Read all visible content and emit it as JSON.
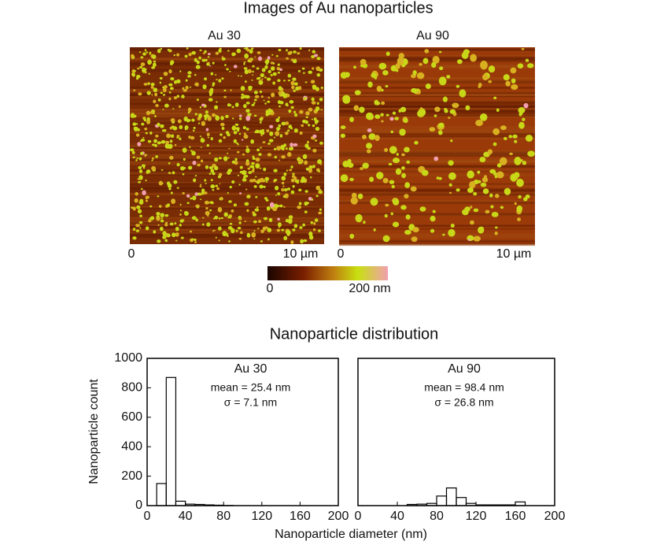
{
  "images": {
    "title": "Images of Au nanoparticles",
    "panels": [
      {
        "label": "Au 30",
        "x_start": "0",
        "x_end": "10 µm"
      },
      {
        "label": "Au 90",
        "x_start": "0",
        "x_end": "10 µm"
      }
    ],
    "colorbar": {
      "min_label": "0",
      "max_label": "200 nm"
    }
  },
  "distribution": {
    "title": "Nanoparticle distribution",
    "xlabel": "Nanoparticle diameter (nm)",
    "ylabel": "Nanoparticle count"
  },
  "chart_data": [
    {
      "type": "histogram",
      "title": "Au 30",
      "annotations": [
        "mean = 25.4 nm",
        "σ =    7.1 nm"
      ],
      "bins": [
        10,
        20,
        30,
        40,
        50,
        60,
        70,
        80,
        90
      ],
      "counts": [
        150,
        870,
        30,
        10,
        8,
        5,
        3,
        1
      ],
      "xlim": [
        0,
        200
      ],
      "xticks": [
        0,
        40,
        80,
        120,
        160,
        200
      ],
      "ylim": [
        0,
        1000
      ],
      "yticks": [
        0,
        200,
        400,
        600,
        800,
        1000
      ],
      "color": "#000000"
    },
    {
      "type": "histogram",
      "title": "Au 90",
      "annotations": [
        "mean = 98.4 nm",
        "σ =  26.8 nm"
      ],
      "bins": [
        50,
        60,
        70,
        80,
        90,
        100,
        110,
        120,
        130,
        140,
        150,
        160,
        170,
        180
      ],
      "counts": [
        8,
        10,
        15,
        65,
        120,
        55,
        15,
        5,
        5,
        5,
        5,
        25,
        0
      ],
      "xlim": [
        0,
        200
      ],
      "xticks": [
        0,
        40,
        80,
        120,
        160,
        200
      ],
      "ylim": [
        0,
        1000
      ],
      "color": "#000000"
    }
  ]
}
